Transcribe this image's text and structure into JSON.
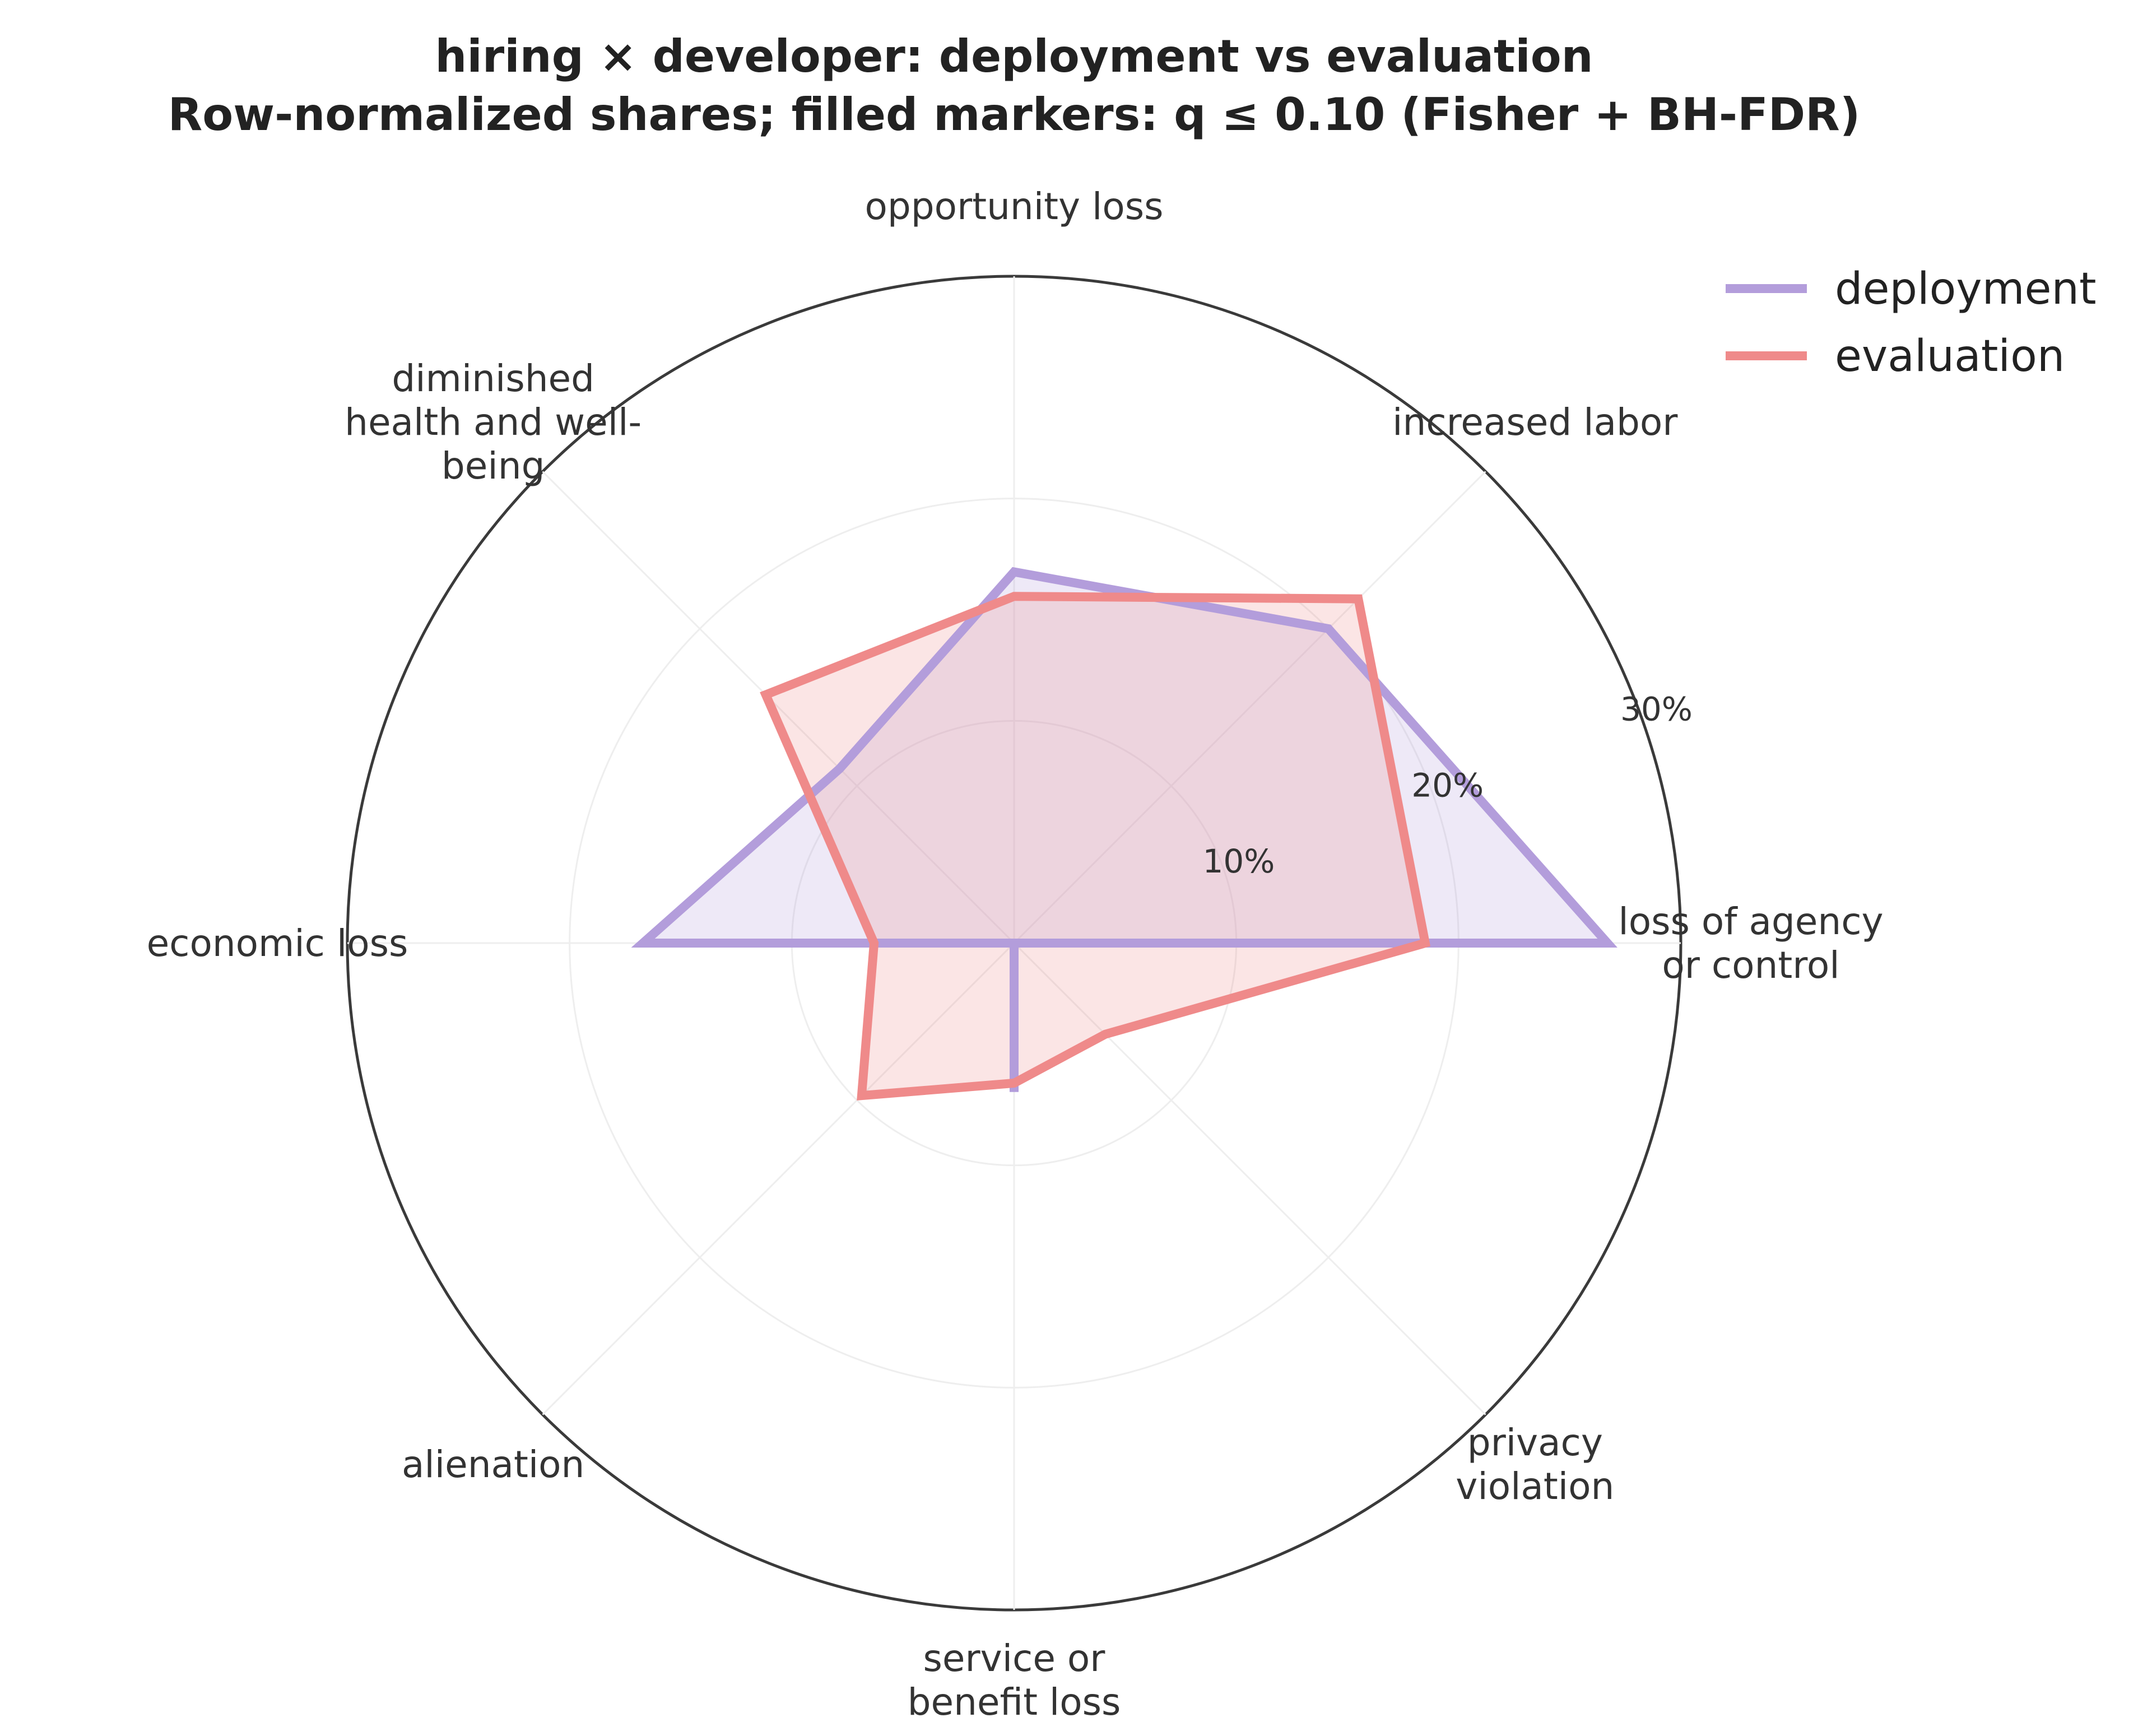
{
  "chart_data": {
    "type": "radar",
    "title": "hiring × developer: deployment vs evaluation",
    "subtitle": "Row-normalized shares; filled markers: q ≤ 0.10 (Fisher + BH-FDR)",
    "categories": [
      "loss of agency or control",
      "increased labor",
      "opportunity loss",
      "diminished health and well-being",
      "economic loss",
      "alienation",
      "service or benefit loss",
      "privacy violation"
    ],
    "r_ticks": [
      10,
      20,
      30
    ],
    "r_tick_labels": [
      "10%",
      "20%",
      "30%"
    ],
    "rlim": [
      0,
      30
    ],
    "grid": true,
    "legend_position": "top-right",
    "series": [
      {
        "name": "deployment",
        "color": "#b39ddb",
        "values": [
          26.7,
          20.0,
          16.7,
          11.1,
          16.7,
          0.0,
          6.7,
          0.0
        ]
      },
      {
        "name": "evaluation",
        "color": "#ef8a8a",
        "values": [
          18.5,
          21.9,
          15.6,
          15.8,
          6.3,
          9.7,
          6.3,
          5.8
        ]
      }
    ]
  }
}
